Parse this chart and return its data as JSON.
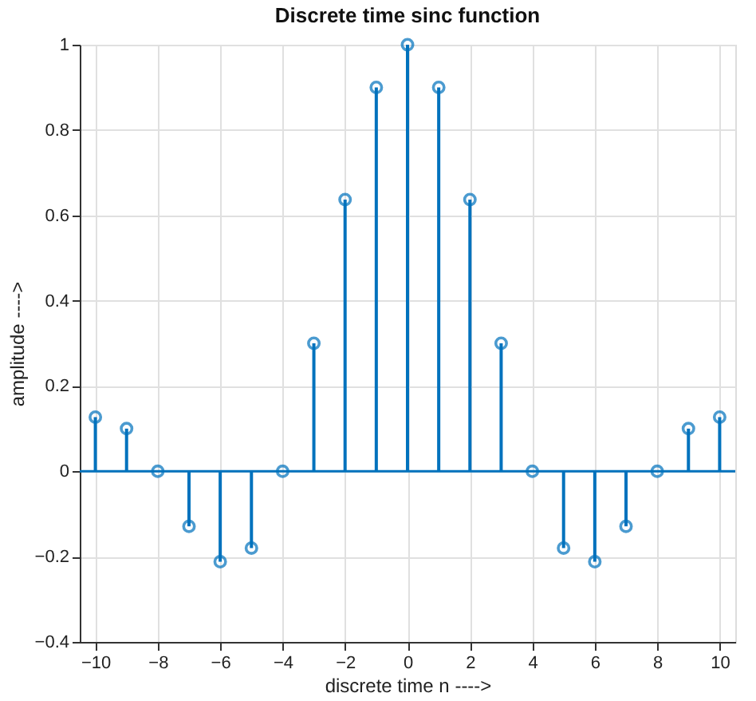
{
  "chart_data": {
    "type": "lollipop",
    "title": "Discrete time sinc function",
    "xlabel": "discrete time n ---->",
    "ylabel": "amplitude ---->",
    "x": [
      -10,
      -9,
      -8,
      -7,
      -6,
      -5,
      -4,
      -3,
      -2,
      -1,
      0,
      1,
      2,
      3,
      4,
      5,
      6,
      7,
      8,
      9,
      10
    ],
    "series": [
      {
        "color": "#0072bd",
        "values": [
          0.127,
          0.1,
          0,
          -0.129,
          -0.212,
          -0.18,
          0,
          0.3,
          0.637,
          0.9,
          1,
          0.9,
          0.637,
          0.3,
          0,
          -0.18,
          -0.212,
          -0.129,
          0,
          0.1,
          0.127
        ]
      }
    ],
    "xlim": [
      -10.5,
      10.5
    ],
    "xticks": [
      -10,
      -8,
      -6,
      -4,
      -2,
      0,
      2,
      4,
      6,
      8,
      10
    ],
    "ylim": [
      -0.4,
      1
    ],
    "yticks": [
      -0.4,
      -0.2,
      0,
      0.2,
      0.4,
      0.6,
      0.8,
      1
    ],
    "ref_lines": [
      {
        "axis": "y",
        "value": 0,
        "color": "#0072bd"
      }
    ],
    "grid": true,
    "marker": "circle"
  }
}
